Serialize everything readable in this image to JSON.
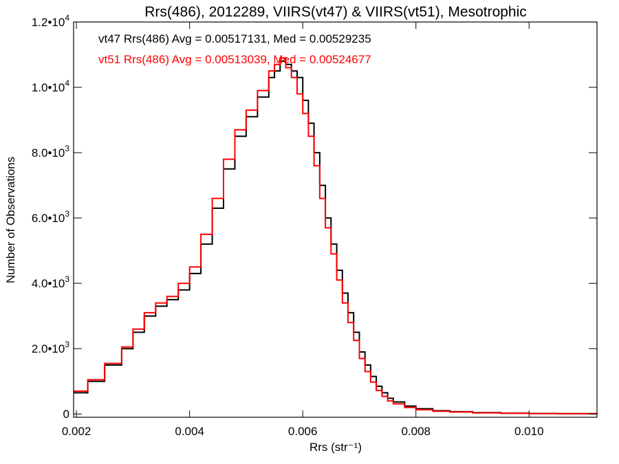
{
  "chart_data": {
    "type": "line",
    "title": "Rrs(486), 2012289, VIIRS(vt47) & VIIRS(vt51), Mesotrophic",
    "xlabel": "Rrs (str⁻¹)",
    "ylabel": "Number of Observations",
    "xlim": [
      0.00195,
      0.0112
    ],
    "ylim": [
      -100,
      12000
    ],
    "x_ticks": [
      {
        "value": 0.002,
        "label": "0.002"
      },
      {
        "value": 0.004,
        "label": "0.004"
      },
      {
        "value": 0.006,
        "label": "0.006"
      },
      {
        "value": 0.008,
        "label": "0.008"
      },
      {
        "value": 0.01,
        "label": "0.010"
      }
    ],
    "y_ticks": [
      {
        "value": 0,
        "mant": "0",
        "exp": ""
      },
      {
        "value": 2000,
        "mant": "2.0•10",
        "exp": "3"
      },
      {
        "value": 4000,
        "mant": "4.0•10",
        "exp": "3"
      },
      {
        "value": 6000,
        "mant": "6.0•10",
        "exp": "3"
      },
      {
        "value": 8000,
        "mant": "8.0•10",
        "exp": "3"
      },
      {
        "value": 10000,
        "mant": "1.0•10",
        "exp": "4"
      },
      {
        "value": 12000,
        "mant": "1.2•10",
        "exp": "4"
      }
    ],
    "grid": false,
    "annotations": [
      {
        "text": "vt47 Rrs(486) Avg = 0.00517131, Med = 0.00529235",
        "color": "#000000"
      },
      {
        "text": "vt51 Rrs(486) Avg = 0.00513039, Med = 0.00524677",
        "color": "#ff0000"
      }
    ],
    "series": [
      {
        "color": "#000000",
        "x": [
          0.00195,
          0.0022,
          0.0025,
          0.0028,
          0.003,
          0.0032,
          0.0034,
          0.0036,
          0.0038,
          0.004,
          0.0042,
          0.0044,
          0.0046,
          0.0048,
          0.005,
          0.0052,
          0.0054,
          0.0055,
          0.0056,
          0.0057,
          0.0058,
          0.0059,
          0.006,
          0.0061,
          0.0062,
          0.0063,
          0.0064,
          0.0065,
          0.0066,
          0.0067,
          0.0068,
          0.0069,
          0.007,
          0.0071,
          0.0072,
          0.0073,
          0.0074,
          0.0075,
          0.0076,
          0.0078,
          0.008,
          0.0083,
          0.0086,
          0.009,
          0.0095,
          0.01,
          0.0105,
          0.0112
        ],
        "y": [
          650,
          1000,
          1500,
          2000,
          2500,
          3000,
          3300,
          3500,
          3800,
          4300,
          5200,
          6300,
          7500,
          8500,
          9100,
          9700,
          10300,
          10500,
          10800,
          10700,
          10500,
          10300,
          9600,
          8900,
          8000,
          7000,
          6000,
          5200,
          4400,
          3700,
          3100,
          2500,
          1900,
          1500,
          1150,
          850,
          650,
          480,
          370,
          240,
          160,
          100,
          70,
          40,
          25,
          15,
          10,
          5
        ]
      },
      {
        "color": "#ff0000",
        "x": [
          0.00195,
          0.0022,
          0.0025,
          0.0028,
          0.003,
          0.0032,
          0.0034,
          0.0036,
          0.0038,
          0.004,
          0.0042,
          0.0044,
          0.0046,
          0.0048,
          0.005,
          0.0052,
          0.0054,
          0.0055,
          0.0056,
          0.0057,
          0.0058,
          0.0059,
          0.006,
          0.0061,
          0.0062,
          0.0063,
          0.0064,
          0.0065,
          0.0066,
          0.0067,
          0.0068,
          0.0069,
          0.007,
          0.0071,
          0.0072,
          0.0073,
          0.0074,
          0.0075,
          0.0076,
          0.0078,
          0.008,
          0.0083,
          0.0086,
          0.009,
          0.0095,
          0.01,
          0.0105,
          0.0112
        ],
        "y": [
          700,
          1050,
          1550,
          2050,
          2600,
          3100,
          3400,
          3600,
          4000,
          4500,
          5500,
          6600,
          7800,
          8700,
          9300,
          9900,
          10500,
          10700,
          10900,
          10600,
          10300,
          9800,
          9200,
          8500,
          7600,
          6600,
          5700,
          4900,
          4100,
          3400,
          2800,
          2250,
          1700,
          1300,
          980,
          720,
          540,
          400,
          310,
          200,
          130,
          85,
          60,
          35,
          20,
          12,
          8,
          4
        ]
      }
    ]
  }
}
